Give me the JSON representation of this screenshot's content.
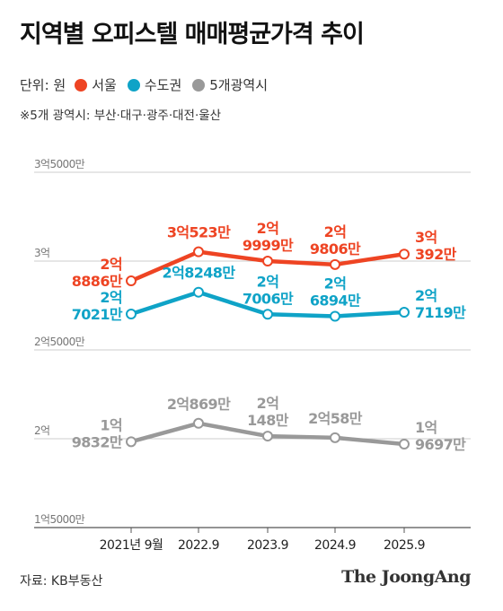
{
  "title": "지역별 오피스텔 매매평균가격 추이",
  "legend": {
    "unit": "단위: 원",
    "items": [
      {
        "label": "서울",
        "color": "#ee4423"
      },
      {
        "label": "수도권",
        "color": "#0fa3c7"
      },
      {
        "label": "5개광역시",
        "color": "#999999"
      }
    ]
  },
  "note": "※5개 광역시: 부산·대구·광주·대전·울산",
  "source": "자료: KB부동산",
  "logo": "The JoongAng",
  "chart_data": {
    "type": "line",
    "categories": [
      "2021년 9월",
      "2022.9",
      "2023.9",
      "2024.9",
      "2025.9"
    ],
    "ylim": [
      150000000,
      350000000
    ],
    "yticks": [
      {
        "value": 350000000,
        "label": "3억5000만"
      },
      {
        "value": 300000000,
        "label": "3억"
      },
      {
        "value": 250000000,
        "label": "2억5000만"
      },
      {
        "value": 200000000,
        "label": "2억"
      },
      {
        "value": 150000000,
        "label": "1억5000만"
      }
    ],
    "series": [
      {
        "name": "서울",
        "color": "#ee4423",
        "values": [
          288860000,
          305230000,
          299990000,
          298060000,
          303920000
        ],
        "labels": [
          [
            "2억",
            "8886만"
          ],
          [
            "3억523만"
          ],
          [
            "2억",
            "9999만"
          ],
          [
            "2억",
            "9806만"
          ],
          [
            "3억",
            "392만"
          ]
        ]
      },
      {
        "name": "수도권",
        "color": "#0fa3c7",
        "values": [
          270210000,
          282480000,
          270060000,
          268940000,
          271190000
        ],
        "labels": [
          [
            "2억",
            "7021만"
          ],
          [
            "2억8248만"
          ],
          [
            "2억",
            "7006만"
          ],
          [
            "2억",
            "6894만"
          ],
          [
            "2억",
            "7119만"
          ]
        ]
      },
      {
        "name": "5개광역시",
        "color": "#999999",
        "values": [
          198320000,
          208690000,
          201480000,
          200580000,
          196970000
        ],
        "labels": [
          [
            "1억",
            "9832만"
          ],
          [
            "2억869만"
          ],
          [
            "2억",
            "148만"
          ],
          [
            "2억58만"
          ],
          [
            "1억",
            "9697만"
          ]
        ]
      }
    ]
  }
}
